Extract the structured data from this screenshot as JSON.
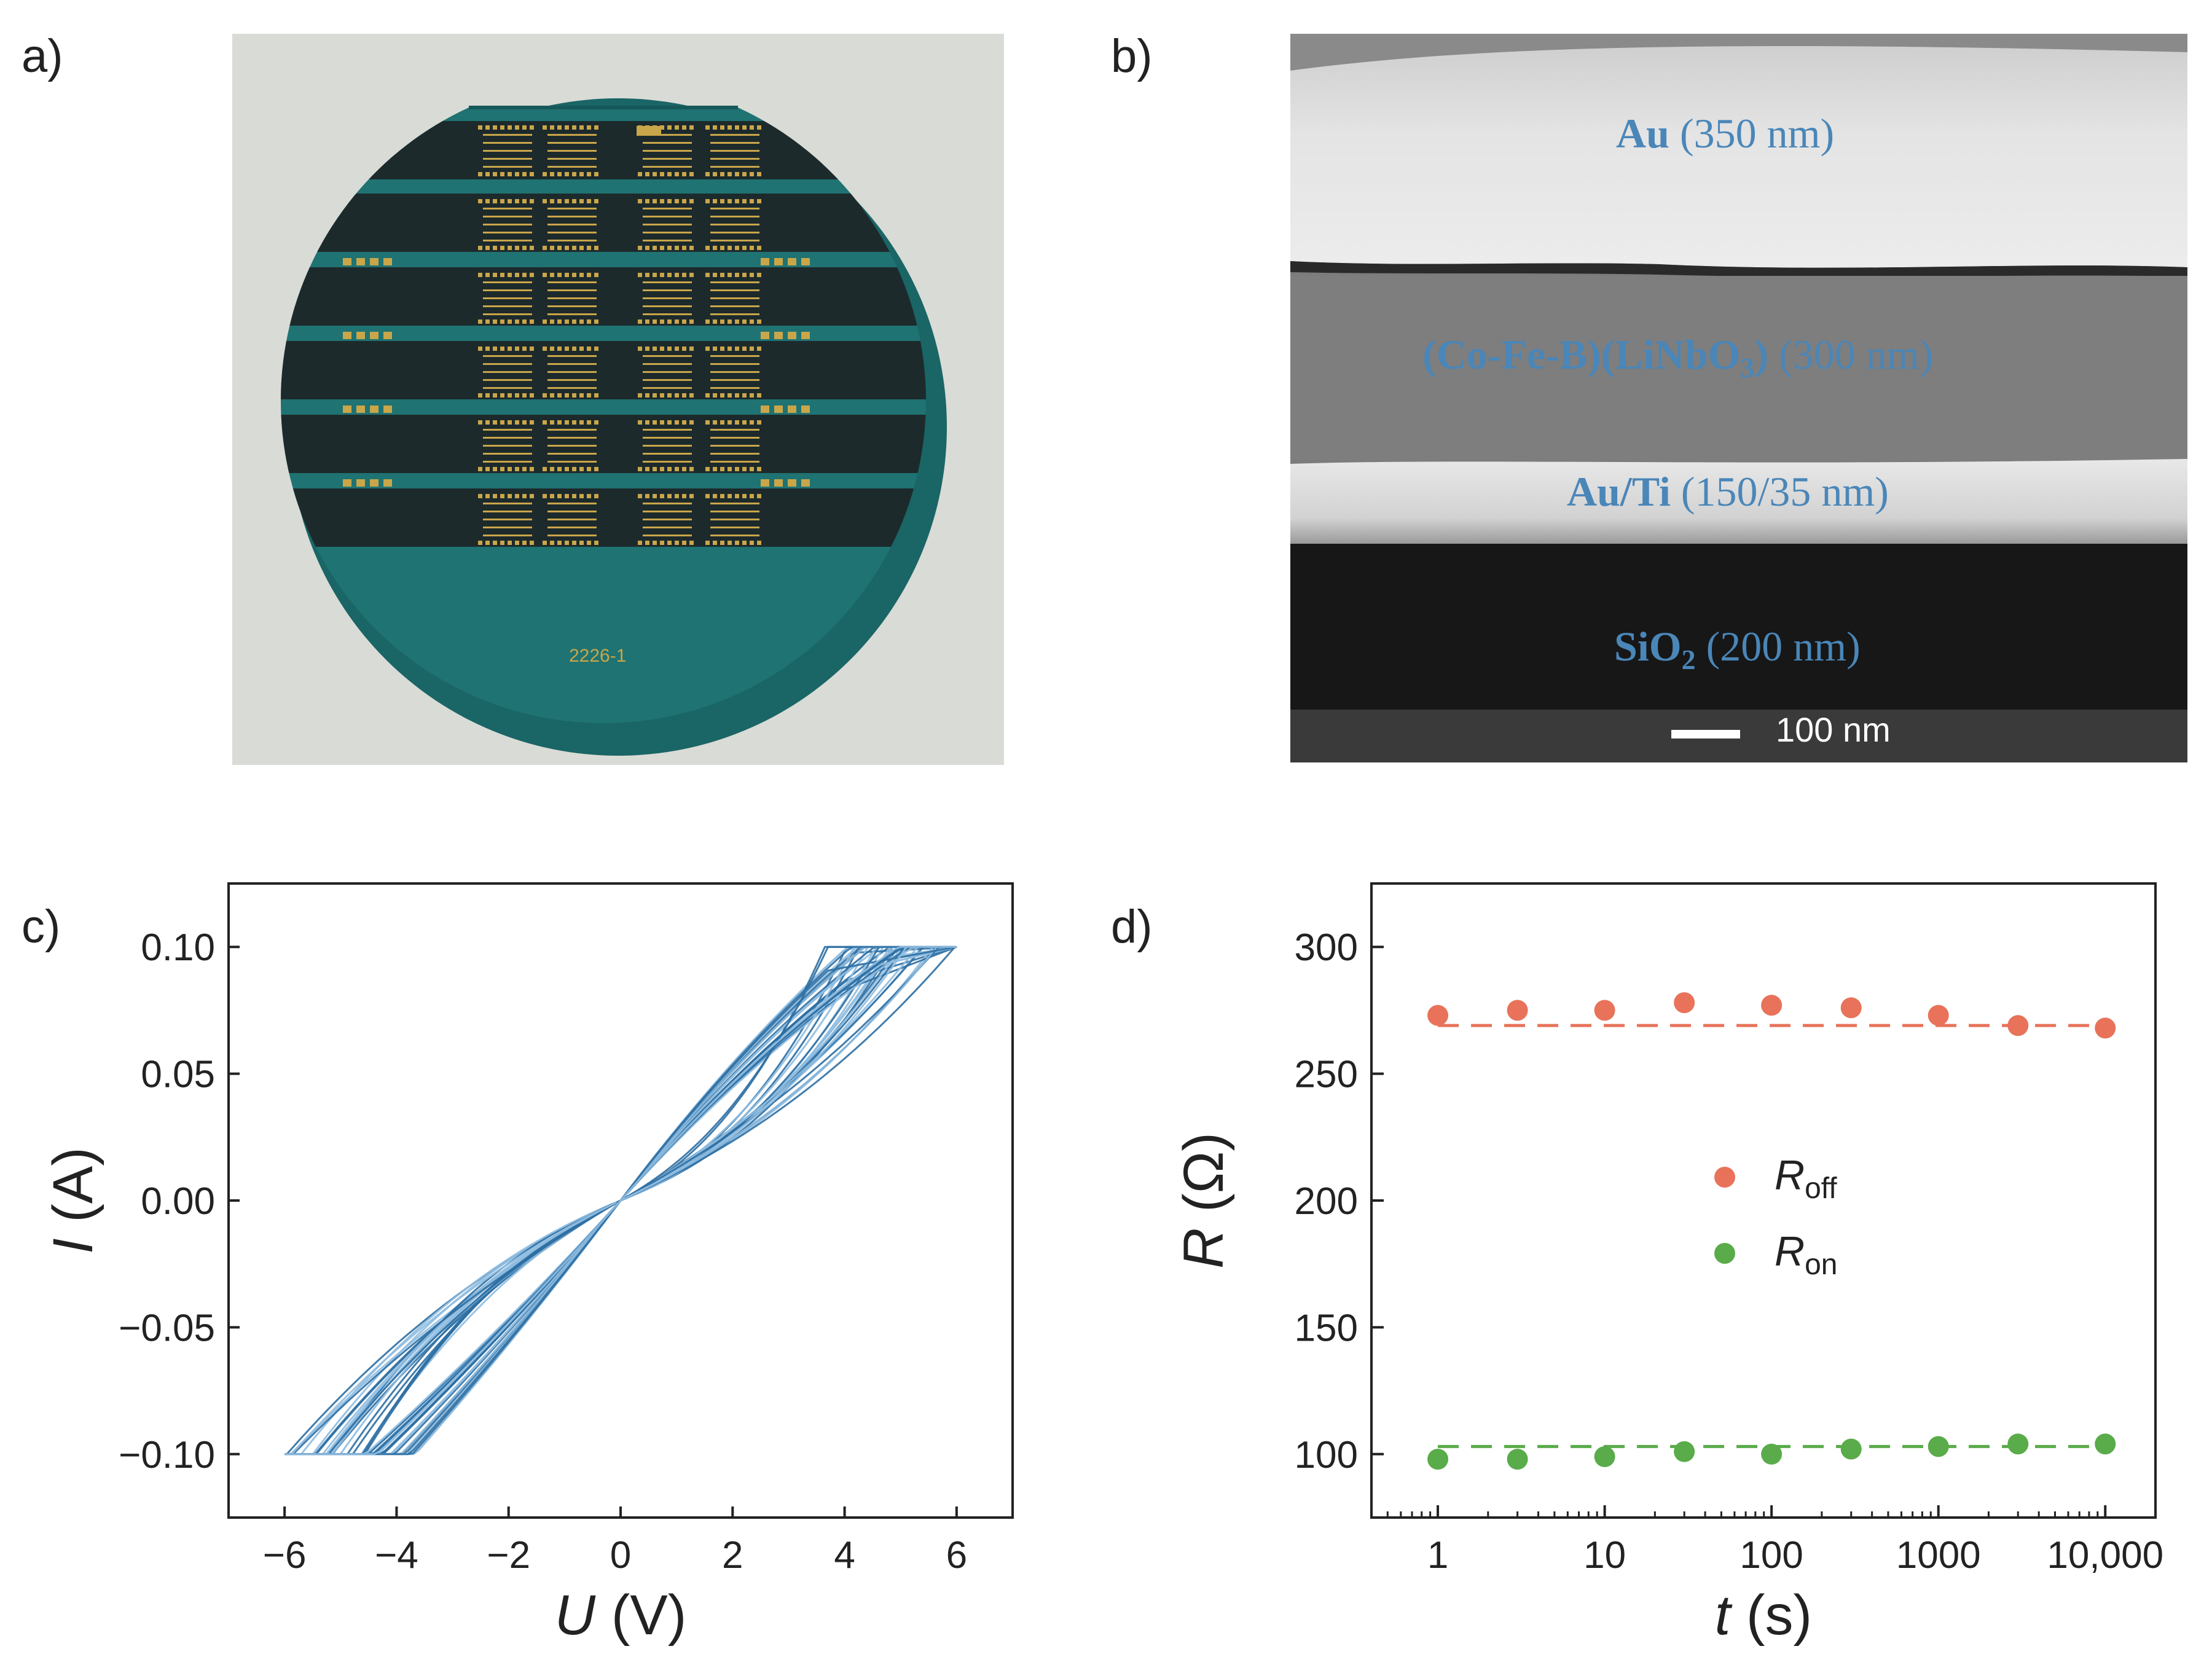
{
  "figure": {
    "panels": [
      {
        "label": "a)"
      },
      {
        "label": "b)"
      },
      {
        "label": "c)"
      },
      {
        "label": "d)"
      }
    ]
  },
  "wafer": {
    "marking": "2226-1",
    "colors": {
      "background": "#d9dbd6",
      "wafer": "#1e6f70",
      "film": "#1d2a2c",
      "pads": "#c9a64a"
    }
  },
  "sem": {
    "layers": [
      {
        "material": "Au",
        "thickness": "(350 nm)"
      },
      {
        "material_parts": [
          "(Co-Fe-B)(LiNbO",
          "3",
          ")"
        ],
        "thickness": "(300 nm)"
      },
      {
        "material": "Au/Ti",
        "thickness": "(150/35 nm)"
      },
      {
        "material_parts": [
          "SiO",
          "2"
        ],
        "thickness": "(200 nm)"
      }
    ],
    "scale_bar": "100 nm",
    "label_color": "#4a86b8"
  },
  "chart_data": [
    {
      "type": "line",
      "panel": "c",
      "xlabel_var": "U",
      "xlabel_unit": "(V)",
      "ylabel_var": "I",
      "ylabel_unit": "(A)",
      "xlim": [
        -7,
        7
      ],
      "ylim": [
        -0.125,
        0.125
      ],
      "xticks": [
        -6,
        -4,
        -2,
        0,
        2,
        4,
        6
      ],
      "xtick_labels": [
        "−6",
        "−4",
        "−2",
        "0",
        "2",
        "4",
        "6"
      ],
      "yticks": [
        -0.1,
        -0.05,
        0.0,
        0.05,
        0.1
      ],
      "ytick_labels": [
        "−0.10",
        "−0.05",
        "0.00",
        "0.05",
        "0.10"
      ],
      "compliance_current": 0.1,
      "switching_voltage_range": [
        3.6,
        6.0
      ],
      "negative_reset_voltage_range": [
        -6.0,
        -4.5
      ],
      "cycles_shown": 24,
      "colors": [
        "#2e6fa3",
        "#8fbde0"
      ]
    },
    {
      "type": "scatter",
      "panel": "d",
      "xscale": "log",
      "xlabel_var": "t",
      "xlabel_unit": "(s)",
      "ylabel_var": "R",
      "ylabel_unit": "(Ω)",
      "xlim": [
        0.4,
        20000
      ],
      "ylim": [
        75,
        325
      ],
      "xticks": [
        1,
        10,
        100,
        1000,
        10000
      ],
      "xtick_labels": [
        "1",
        "10",
        "100",
        "1000",
        "10,000"
      ],
      "yticks": [
        100,
        150,
        200,
        250,
        300
      ],
      "ytick_labels": [
        "100",
        "150",
        "200",
        "250",
        "300"
      ],
      "series": [
        {
          "name": "R_off",
          "label_main": "R",
          "label_sub": "off",
          "color": "#e8735a",
          "x": [
            1,
            3,
            10,
            30,
            100,
            300,
            1000,
            3000,
            10000
          ],
          "values": [
            273,
            275,
            275,
            278,
            277,
            276,
            273,
            269,
            268
          ],
          "fit": 269
        },
        {
          "name": "R_on",
          "label_main": "R",
          "label_sub": "on",
          "color": "#5aab4a",
          "x": [
            1,
            3,
            10,
            30,
            100,
            300,
            1000,
            3000,
            10000
          ],
          "values": [
            98,
            98,
            99,
            101,
            100,
            102,
            103,
            104,
            104
          ],
          "fit": 103
        }
      ],
      "legend_position": "center"
    }
  ]
}
